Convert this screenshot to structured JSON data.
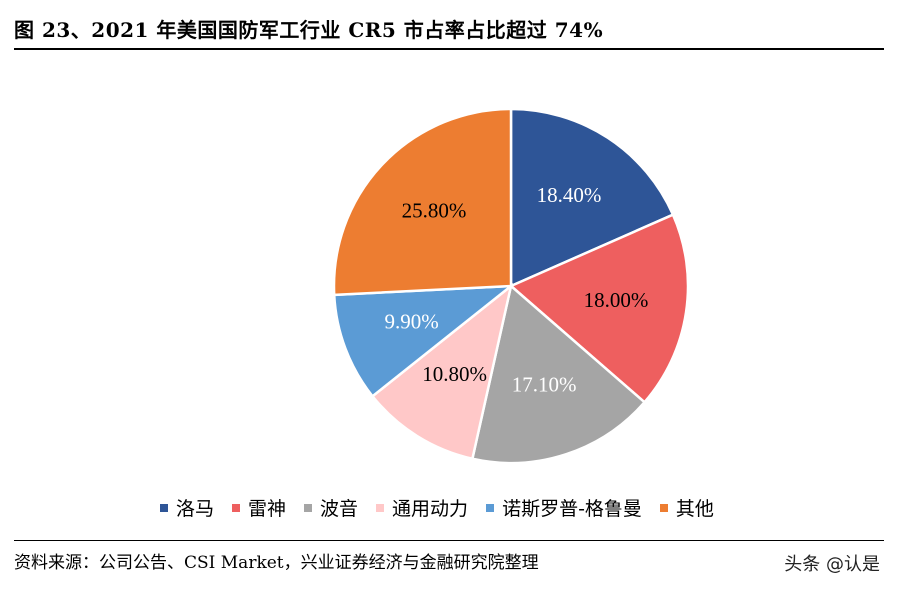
{
  "title": "图  23、2021 年美国国防军工行业 CR5 市占率占比超过 74%",
  "source": "资料来源：公司公告、CSI Market，兴业证券经济与金融研究院整理",
  "watermark": "头条 @认是",
  "chart_data": {
    "type": "pie",
    "labels": [
      "洛马",
      "雷神",
      "波音",
      "通用动力",
      "诺斯罗普-格鲁曼",
      "其他"
    ],
    "values": [
      18.4,
      18.0,
      17.1,
      10.8,
      9.9,
      25.8
    ],
    "value_labels": [
      "18.40%",
      "18.00%",
      "17.10%",
      "10.80%",
      "9.90%",
      "25.80%"
    ],
    "colors": [
      "#2E5597",
      "#EE5F5F",
      "#A5A5A5",
      "#FFC8C8",
      "#5B9BD5",
      "#ED7D31"
    ],
    "label_colors": [
      "#ffffff",
      "#000000",
      "#ffffff",
      "#000000",
      "#ffffff",
      "#000000"
    ],
    "legend_position": "bottom"
  }
}
